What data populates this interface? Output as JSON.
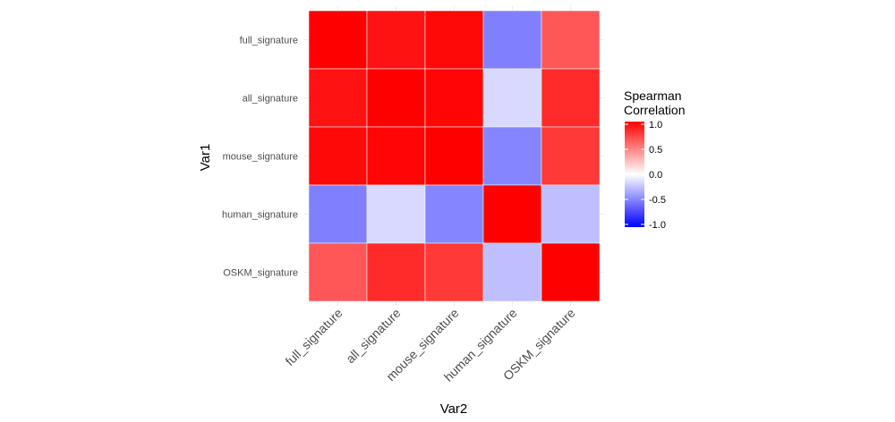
{
  "chart_data": {
    "type": "heatmap",
    "xlabel": "Var2",
    "ylabel": "Var1",
    "x_categories": [
      "full_signature",
      "all_signature",
      "mouse_signature",
      "human_signature",
      "OSKM_signature"
    ],
    "y_categories": [
      "full_signature",
      "all_signature",
      "mouse_signature",
      "human_signature",
      "OSKM_signature"
    ],
    "values": [
      [
        1.0,
        0.93,
        0.97,
        -0.5,
        0.66
      ],
      [
        0.93,
        1.0,
        0.98,
        -0.15,
        0.83
      ],
      [
        0.97,
        0.98,
        1.0,
        -0.48,
        0.78
      ],
      [
        -0.5,
        -0.15,
        -0.48,
        1.0,
        -0.25
      ],
      [
        0.66,
        0.83,
        0.78,
        -0.25,
        1.0
      ]
    ],
    "legend": {
      "title": [
        "Spearman",
        "Correlation"
      ],
      "ticks": [
        "1.0",
        "0.5",
        "0.0",
        "-0.5",
        "-1.0"
      ],
      "tick_values": [
        1.0,
        0.5,
        0.0,
        -0.5,
        -1.0
      ],
      "limits": [
        -1,
        1
      ],
      "placement": "right"
    },
    "colors": {
      "low": "#0000ff",
      "mid": "#ffffff",
      "high": "#ff0000"
    },
    "grid": true
  }
}
